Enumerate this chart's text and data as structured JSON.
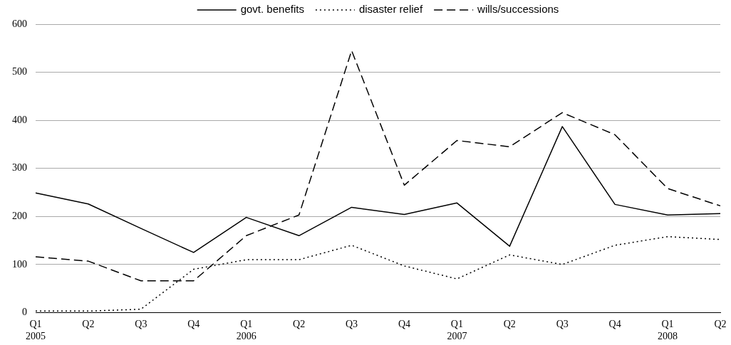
{
  "chart_data": {
    "type": "line",
    "categories": [
      "Q1\n2005",
      "Q2",
      "Q3",
      "Q4",
      "Q1\n2006",
      "Q2",
      "Q3",
      "Q4",
      "Q1\n2007",
      "Q2",
      "Q3",
      "Q4",
      "Q1\n2008",
      "Q2"
    ],
    "series": [
      {
        "name": "govt. benefits",
        "color": "#000000",
        "line_style": "solid",
        "values": [
          249,
          226,
          175,
          125,
          198,
          160,
          219,
          204,
          228,
          138,
          387,
          225,
          203,
          206
        ]
      },
      {
        "name": "disaster relief",
        "color": "#000000",
        "line_style": "dotted",
        "values": [
          3,
          3,
          7,
          90,
          110,
          110,
          140,
          97,
          70,
          120,
          100,
          140,
          158,
          152
        ]
      },
      {
        "name": "wills/successions",
        "color": "#000000",
        "line_style": "dashed",
        "values": [
          116,
          107,
          66,
          66,
          160,
          203,
          545,
          265,
          358,
          345,
          416,
          370,
          258,
          222
        ]
      }
    ],
    "ylim": [
      0,
      600
    ],
    "yticks": [
      0,
      100,
      200,
      300,
      400,
      500,
      600
    ],
    "grid": "y",
    "legend": "top",
    "marker": "none"
  }
}
